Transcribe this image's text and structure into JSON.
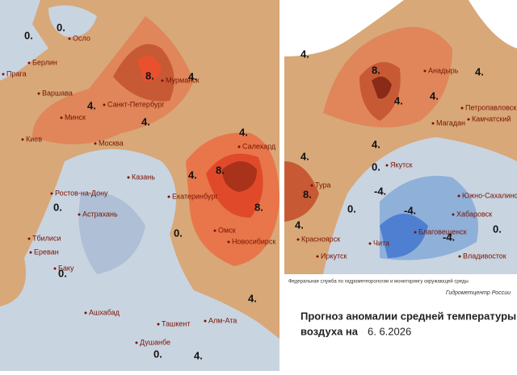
{
  "left_map": {
    "cities": [
      "Осло",
      "Берлин",
      "Прага",
      "Варшава",
      "Минск",
      "Санкт-Петербург",
      "Мурманск",
      "Киев",
      "Москва",
      "Салехард",
      "Казань",
      "Ростов-на-Дону",
      "Екатеринбург",
      "Астрахань",
      "Омск",
      "Новосибирск",
      "Тбилиси",
      "Ереван",
      "Баку",
      "Ашхабад",
      "Ташкент",
      "Алм-Ата",
      "Душанбе"
    ],
    "contour_labels": [
      "0.",
      "0.",
      "8.",
      "4.",
      "4.",
      "4.",
      "4.",
      "8.",
      "8.",
      "4.",
      "0.",
      "0.",
      "0.",
      "4.",
      "0.",
      "4."
    ]
  },
  "right_map": {
    "cities": [
      "Анадырь",
      "Петропавловск",
      "Камчатский",
      "Магадан",
      "Якутск",
      "Тура",
      "Красноярск",
      "Иркутск",
      "Чита",
      "Южно-Сахалинск",
      "Хабаровск",
      "Благовещенск",
      "Владивосток"
    ],
    "contour_labels": [
      "4.",
      "8.",
      "4.",
      "4.",
      "4.",
      "4.",
      "0.",
      "4.",
      "8.",
      "0.",
      "-4.",
      "-4.",
      "-4.",
      "4.",
      "0."
    ]
  },
  "footer": {
    "agency": "Федеральная служба по гидрометеорологии и мониторингу окружающей среды",
    "center": "Гидрометцентр России"
  },
  "title": {
    "line1": "Прогноз аномалии средней температуры",
    "line2": "воздуха на",
    "date": "6. 6.2026"
  }
}
